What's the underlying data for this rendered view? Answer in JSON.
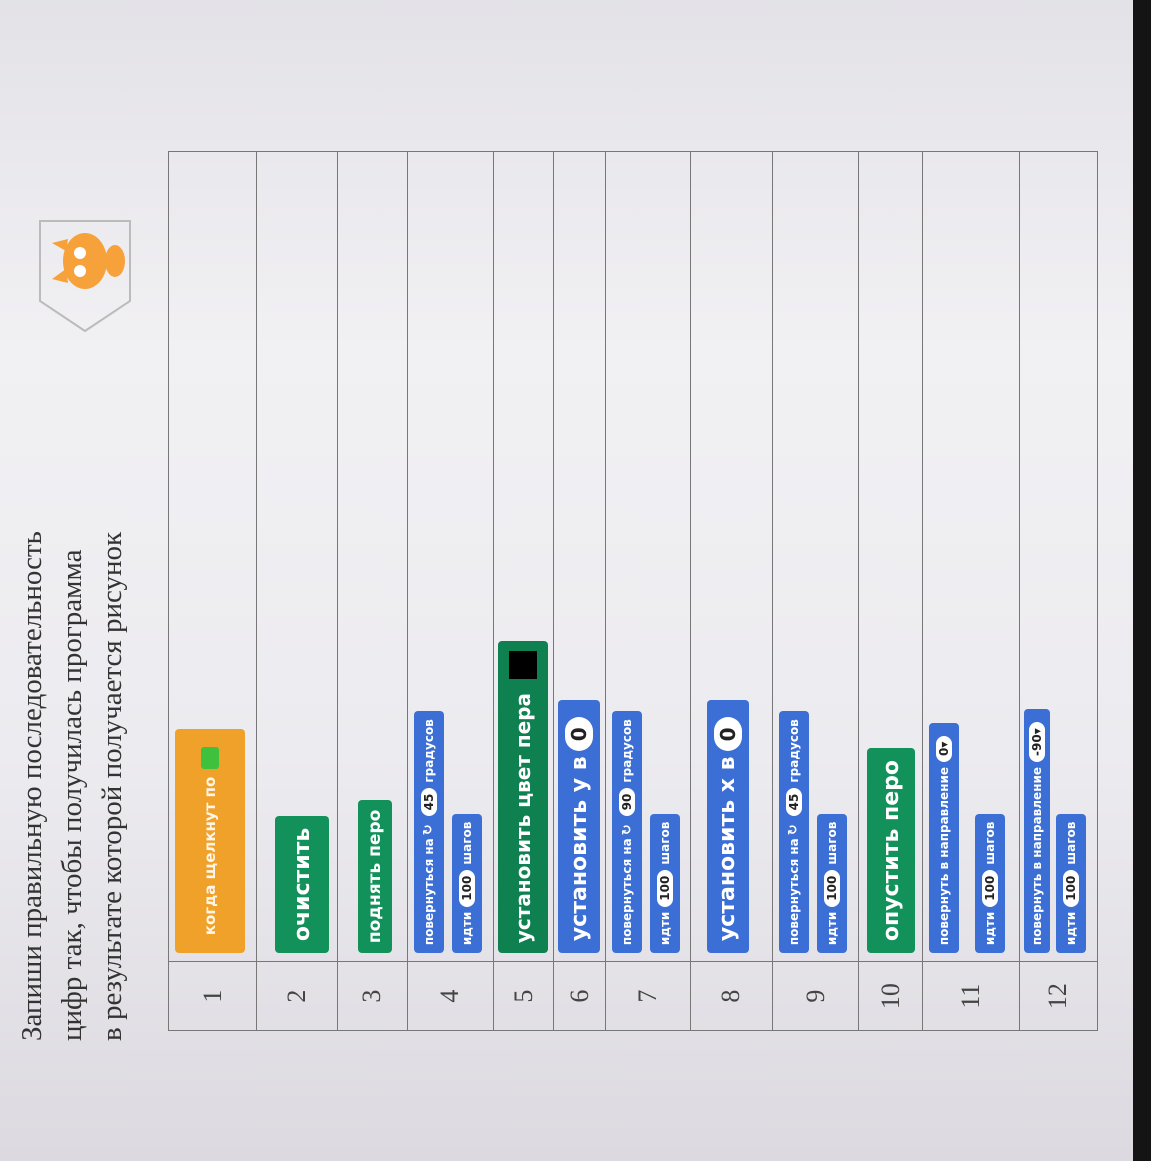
{
  "instruction": {
    "line1": "Запиши правильную последовательность",
    "line2": "цифр так, чтобы получилась программа",
    "line3": "в результате которой получается рисунок"
  },
  "rows": [
    {
      "num": "1",
      "blocks": [
        {
          "type": "events",
          "text": "когда щелкнут по"
        }
      ]
    },
    {
      "num": "2",
      "blocks": [
        {
          "type": "pen-big",
          "text": "очистить"
        }
      ]
    },
    {
      "num": "3",
      "blocks": [
        {
          "type": "pen-small",
          "text": "поднять перо"
        }
      ]
    },
    {
      "num": "4",
      "blocks": [
        {
          "type": "turn",
          "pre": "повернуться на",
          "value": "45",
          "post": "градусов"
        },
        {
          "type": "move",
          "pre": "идти",
          "value": "100",
          "post": "шагов"
        }
      ]
    },
    {
      "num": "5",
      "blocks": [
        {
          "type": "pen-color",
          "text": "установить цвет пера"
        }
      ]
    },
    {
      "num": "6",
      "blocks": [
        {
          "type": "setxy",
          "text": "установить у в",
          "value": "0"
        }
      ]
    },
    {
      "num": "7",
      "blocks": [
        {
          "type": "turn",
          "pre": "повернуться на",
          "value": "90",
          "post": "градусов"
        },
        {
          "type": "move",
          "pre": "идти",
          "value": "100",
          "post": "шагов"
        }
      ]
    },
    {
      "num": "8",
      "blocks": [
        {
          "type": "setxy",
          "text": "установить х в",
          "value": "0"
        }
      ]
    },
    {
      "num": "9",
      "blocks": [
        {
          "type": "turn",
          "pre": "повернуться на",
          "value": "45",
          "post": "градусов"
        },
        {
          "type": "move",
          "pre": "идти",
          "value": "100",
          "post": "шагов"
        }
      ]
    },
    {
      "num": "10",
      "blocks": [
        {
          "type": "pen-big",
          "text": "опустить перо"
        }
      ]
    },
    {
      "num": "11",
      "blocks": [
        {
          "type": "dir",
          "pre": "повернуть в направление",
          "value": "0▾"
        },
        {
          "type": "move",
          "pre": "идти",
          "value": "100",
          "post": "шагов"
        }
      ]
    },
    {
      "num": "12",
      "blocks": [
        {
          "type": "dir",
          "pre": "повернуть в направление",
          "value": "-90▾"
        },
        {
          "type": "move",
          "pre": "идти",
          "value": "100",
          "post": "шагов"
        }
      ]
    }
  ],
  "colors": {
    "events": "#f0a12a",
    "pen": "#12915a",
    "motion": "#3b6fd6"
  },
  "icons": [
    "green-flag-icon",
    "turn-right-icon",
    "scratch-cat-icon"
  ]
}
